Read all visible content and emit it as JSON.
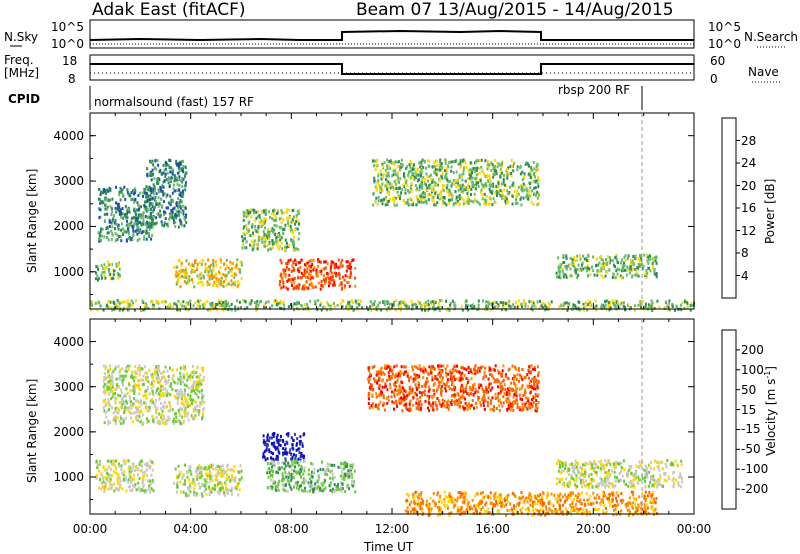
{
  "header": {
    "station": "Adak East (fitACF)",
    "beam_info": "Beam 07 13/Aug/2015 - 14/Aug/2015"
  },
  "status_panels": {
    "nsky_label": "N.Sky",
    "nsky_ticks": [
      "10^5",
      "10^0"
    ],
    "nsearch_label": "N.Search",
    "nsearch_ticks": [
      "10^5",
      "10^0"
    ],
    "freq_label_1": "Freq.",
    "freq_label_2": "[MHz]",
    "freq_ticks": [
      "18",
      "8"
    ],
    "nave_label": "Nave",
    "nave_ticks": [
      "60",
      "0"
    ],
    "cpid_label": "CPID",
    "cpid_left": "normalsound (fast) 157 RF",
    "cpid_right": "rbsp 200 RF"
  },
  "chart_data": [
    {
      "type": "heatmap",
      "panel": "power",
      "ylabel": "Slant Range [km]",
      "yticks": [
        "4000",
        "3000",
        "2000",
        "1000"
      ],
      "ylim": [
        180,
        4500
      ],
      "colorbar_label": "Power [dB]",
      "colorbar_ticks": [
        "28",
        "24",
        "20",
        "16",
        "12",
        "8",
        "4"
      ],
      "colors": [
        "#0000ff",
        "#1f4fa0",
        "#2e8b57",
        "#66bb6a",
        "#ffd700",
        "#ff8c00",
        "#ff4500",
        "#ff0000"
      ],
      "regions": [
        {
          "t0": 0.2,
          "t1": 1.2,
          "r0": 850,
          "r1": 1250,
          "level": 3
        },
        {
          "t0": 0.3,
          "t1": 2.5,
          "r0": 1700,
          "r1": 2900,
          "level": 2
        },
        {
          "t0": 2.2,
          "t1": 3.8,
          "r0": 2000,
          "r1": 3500,
          "level": 2
        },
        {
          "t0": 3.3,
          "t1": 6.0,
          "r0": 700,
          "r1": 1300,
          "level": 4
        },
        {
          "t0": 6.0,
          "t1": 8.3,
          "r0": 1500,
          "r1": 2400,
          "level": 3
        },
        {
          "t0": 7.5,
          "t1": 10.5,
          "r0": 650,
          "r1": 1300,
          "level": 6
        },
        {
          "t0": 11.2,
          "t1": 17.8,
          "r0": 2500,
          "r1": 3500,
          "level": 3
        },
        {
          "t0": 18.5,
          "t1": 22.5,
          "r0": 900,
          "r1": 1400,
          "level": 3
        },
        {
          "t0": 0.0,
          "t1": 24.0,
          "r0": 180,
          "r1": 400,
          "level": 3
        }
      ]
    },
    {
      "type": "heatmap",
      "panel": "velocity",
      "ylabel": "Slant Range [km]",
      "yticks": [
        "4000",
        "3000",
        "2000",
        "1000"
      ],
      "ylim": [
        180,
        4500
      ],
      "xticks": [
        "00:00",
        "04:00",
        "08:00",
        "12:00",
        "16:00",
        "20:00",
        "00:00"
      ],
      "xlabel": "Time UT",
      "xlim": [
        0,
        24
      ],
      "colorbar_label": "Velocity [m s",
      "colorbar_label_sup": "-1",
      "colorbar_ticks": [
        "200",
        "100",
        "50",
        "15",
        "-15",
        "-50",
        "-100",
        "-200"
      ],
      "colors": [
        "#1010c0",
        "#2040b0",
        "#2e8b57",
        "#66cc33",
        "#c8c8c8",
        "#ffd700",
        "#ff8c00",
        "#ff6000",
        "#ff0000"
      ],
      "regions": [
        {
          "t0": 0.2,
          "t1": 2.5,
          "r0": 700,
          "r1": 1400,
          "level": 4
        },
        {
          "t0": 0.5,
          "t1": 4.5,
          "r0": 2200,
          "r1": 3500,
          "level": 4
        },
        {
          "t0": 3.3,
          "t1": 6.0,
          "r0": 600,
          "r1": 1300,
          "level": 4
        },
        {
          "t0": 6.8,
          "t1": 8.5,
          "r0": 1400,
          "r1": 2000,
          "level": 0
        },
        {
          "t0": 7.0,
          "t1": 10.5,
          "r0": 700,
          "r1": 1400,
          "level": 3
        },
        {
          "t0": 11.0,
          "t1": 17.8,
          "r0": 2500,
          "r1": 3500,
          "level": 7
        },
        {
          "t0": 12.5,
          "t1": 22.5,
          "r0": 180,
          "r1": 700,
          "level": 6
        },
        {
          "t0": 18.5,
          "t1": 23.5,
          "r0": 800,
          "r1": 1400,
          "level": 4
        }
      ]
    }
  ]
}
